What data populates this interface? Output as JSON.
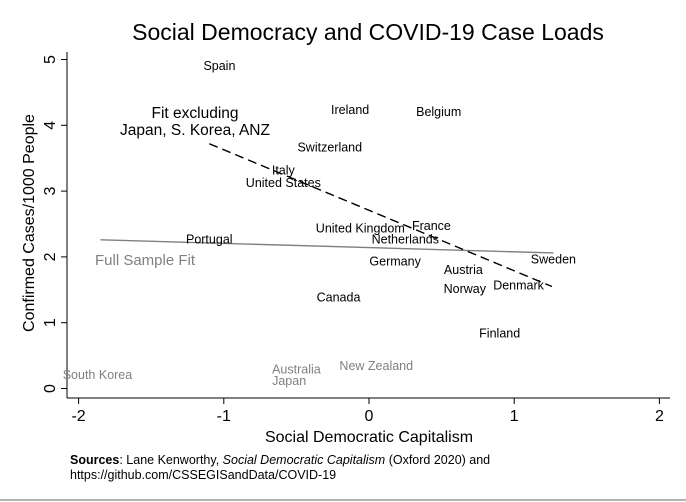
{
  "chart_data": {
    "type": "scatter",
    "title": "Social Democracy and COVID-19 Case Loads",
    "xlabel": "Social Democratic Capitalism",
    "ylabel": "Confirmed Cases/1000 People",
    "xlim": [
      -2.08,
      2.1
    ],
    "ylim": [
      -0.14,
      5.1
    ],
    "xticks": [
      -2,
      -1,
      0,
      1,
      2
    ],
    "yticks": [
      0,
      1,
      2,
      3,
      4,
      5
    ],
    "grid": false,
    "colors": {
      "main": "#000000",
      "excluded": "#808080",
      "full_fit": "#808080"
    },
    "points": [
      {
        "label": "Spain",
        "x": -1.03,
        "y": 4.91,
        "excluded": false
      },
      {
        "label": "Ireland",
        "x": -0.13,
        "y": 4.24,
        "excluded": false
      },
      {
        "label": "Belgium",
        "x": 0.48,
        "y": 4.21,
        "excluded": false
      },
      {
        "label": "Switzerland",
        "x": -0.27,
        "y": 3.67,
        "excluded": false
      },
      {
        "label": "Italy",
        "x": -0.59,
        "y": 3.32,
        "excluded": false
      },
      {
        "label": "United States",
        "x": -0.59,
        "y": 3.13,
        "excluded": false
      },
      {
        "label": "United Kingdom",
        "x": -0.06,
        "y": 2.44,
        "excluded": false
      },
      {
        "label": "France",
        "x": 0.43,
        "y": 2.48,
        "excluded": false
      },
      {
        "label": "Netherlands",
        "x": 0.25,
        "y": 2.27,
        "excluded": false
      },
      {
        "label": "Portugal",
        "x": -1.1,
        "y": 2.27,
        "excluded": false
      },
      {
        "label": "Germany",
        "x": 0.18,
        "y": 1.94,
        "excluded": false
      },
      {
        "label": "Austria",
        "x": 0.65,
        "y": 1.81,
        "excluded": false
      },
      {
        "label": "Sweden",
        "x": 1.27,
        "y": 1.97,
        "excluded": false
      },
      {
        "label": "Norway",
        "x": 0.66,
        "y": 1.52,
        "excluded": false
      },
      {
        "label": "Denmark",
        "x": 1.03,
        "y": 1.57,
        "excluded": false
      },
      {
        "label": "Canada",
        "x": -0.21,
        "y": 1.39,
        "excluded": false
      },
      {
        "label": "Finland",
        "x": 0.9,
        "y": 0.84,
        "excluded": false
      },
      {
        "label": "South Korea",
        "x": -1.87,
        "y": 0.21,
        "excluded": true
      },
      {
        "label": "Australia",
        "x": -0.5,
        "y": 0.3,
        "excluded": true
      },
      {
        "label": "Japan",
        "x": -0.55,
        "y": 0.12,
        "excluded": true
      },
      {
        "label": "New Zealand",
        "x": 0.05,
        "y": 0.35,
        "excluded": true
      }
    ],
    "fits": [
      {
        "name": "Full Sample Fit",
        "x": [
          -1.85,
          1.27
        ],
        "y": [
          2.26,
          2.06
        ],
        "style": "solid"
      },
      {
        "name": "Fit excluding Japan, S. Korea, ANZ",
        "x": [
          -1.1,
          1.26
        ],
        "y": [
          3.72,
          1.55
        ],
        "style": "dashed"
      }
    ],
    "annotations": {
      "full_fit_label": "Full Sample Fit",
      "excl_fit_line1": "Fit excluding",
      "excl_fit_line2": "Japan, S. Korea, ANZ"
    }
  },
  "sources": {
    "label": "Sources",
    "text_before": ": Lane Kenworthy, ",
    "book": "Social Democratic Capitalism",
    "text_after": " (Oxford 2020) and",
    "line2": "https://github.com/CSSEGISandData/COVID-19"
  }
}
